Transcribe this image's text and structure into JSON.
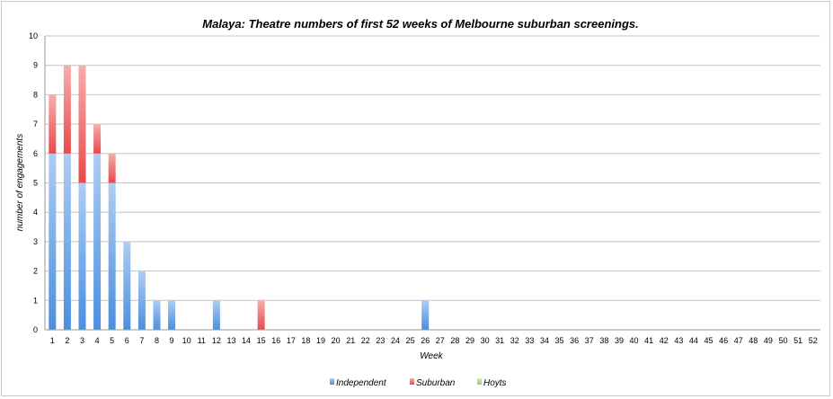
{
  "chart_data": {
    "type": "bar",
    "stacked": true,
    "title": "Malaya: Theatre numbers of first 52 weeks of Melbourne suburban screenings.",
    "xlabel": "Week",
    "ylabel": "number of engagements",
    "ylim": [
      0,
      10
    ],
    "yticks": [
      0,
      1,
      2,
      3,
      4,
      5,
      6,
      7,
      8,
      9,
      10
    ],
    "grid": true,
    "legend_position": "bottom",
    "categories": [
      "1",
      "2",
      "3",
      "4",
      "5",
      "6",
      "7",
      "8",
      "9",
      "10",
      "11",
      "12",
      "13",
      "14",
      "15",
      "16",
      "17",
      "18",
      "19",
      "20",
      "21",
      "22",
      "23",
      "24",
      "25",
      "26",
      "27",
      "28",
      "29",
      "30",
      "31",
      "32",
      "33",
      "34",
      "35",
      "36",
      "37",
      "38",
      "39",
      "40",
      "41",
      "42",
      "43",
      "44",
      "45",
      "46",
      "47",
      "48",
      "49",
      "50",
      "51",
      "52"
    ],
    "series": [
      {
        "name": "Independent",
        "color": "#4a8fe0",
        "values": [
          6,
          6,
          5,
          6,
          5,
          3,
          2,
          1,
          1,
          0,
          0,
          1,
          0,
          0,
          0,
          0,
          0,
          0,
          0,
          0,
          0,
          0,
          0,
          0,
          0,
          1,
          0,
          0,
          0,
          0,
          0,
          0,
          0,
          0,
          0,
          0,
          0,
          0,
          0,
          0,
          0,
          0,
          0,
          0,
          0,
          0,
          0,
          0,
          0,
          0,
          0,
          0
        ]
      },
      {
        "name": "Suburban",
        "color": "#e84a4a",
        "values": [
          2,
          3,
          4,
          1,
          1,
          0,
          0,
          0,
          0,
          0,
          0,
          0,
          0,
          0,
          1,
          0,
          0,
          0,
          0,
          0,
          0,
          0,
          0,
          0,
          0,
          0,
          0,
          0,
          0,
          0,
          0,
          0,
          0,
          0,
          0,
          0,
          0,
          0,
          0,
          0,
          0,
          0,
          0,
          0,
          0,
          0,
          0,
          0,
          0,
          0,
          0,
          0
        ]
      },
      {
        "name": "Hoyts",
        "color": "#8fd45a",
        "values": [
          0,
          0,
          0,
          0,
          0,
          0,
          0,
          0,
          0,
          0,
          0,
          0,
          0,
          0,
          0,
          0,
          0,
          0,
          0,
          0,
          0,
          0,
          0,
          0,
          0,
          0,
          0,
          0,
          0,
          0,
          0,
          0,
          0,
          0,
          0,
          0,
          0,
          0,
          0,
          0,
          0,
          0,
          0,
          0,
          0,
          0,
          0,
          0,
          0,
          0,
          0,
          0
        ]
      }
    ]
  }
}
